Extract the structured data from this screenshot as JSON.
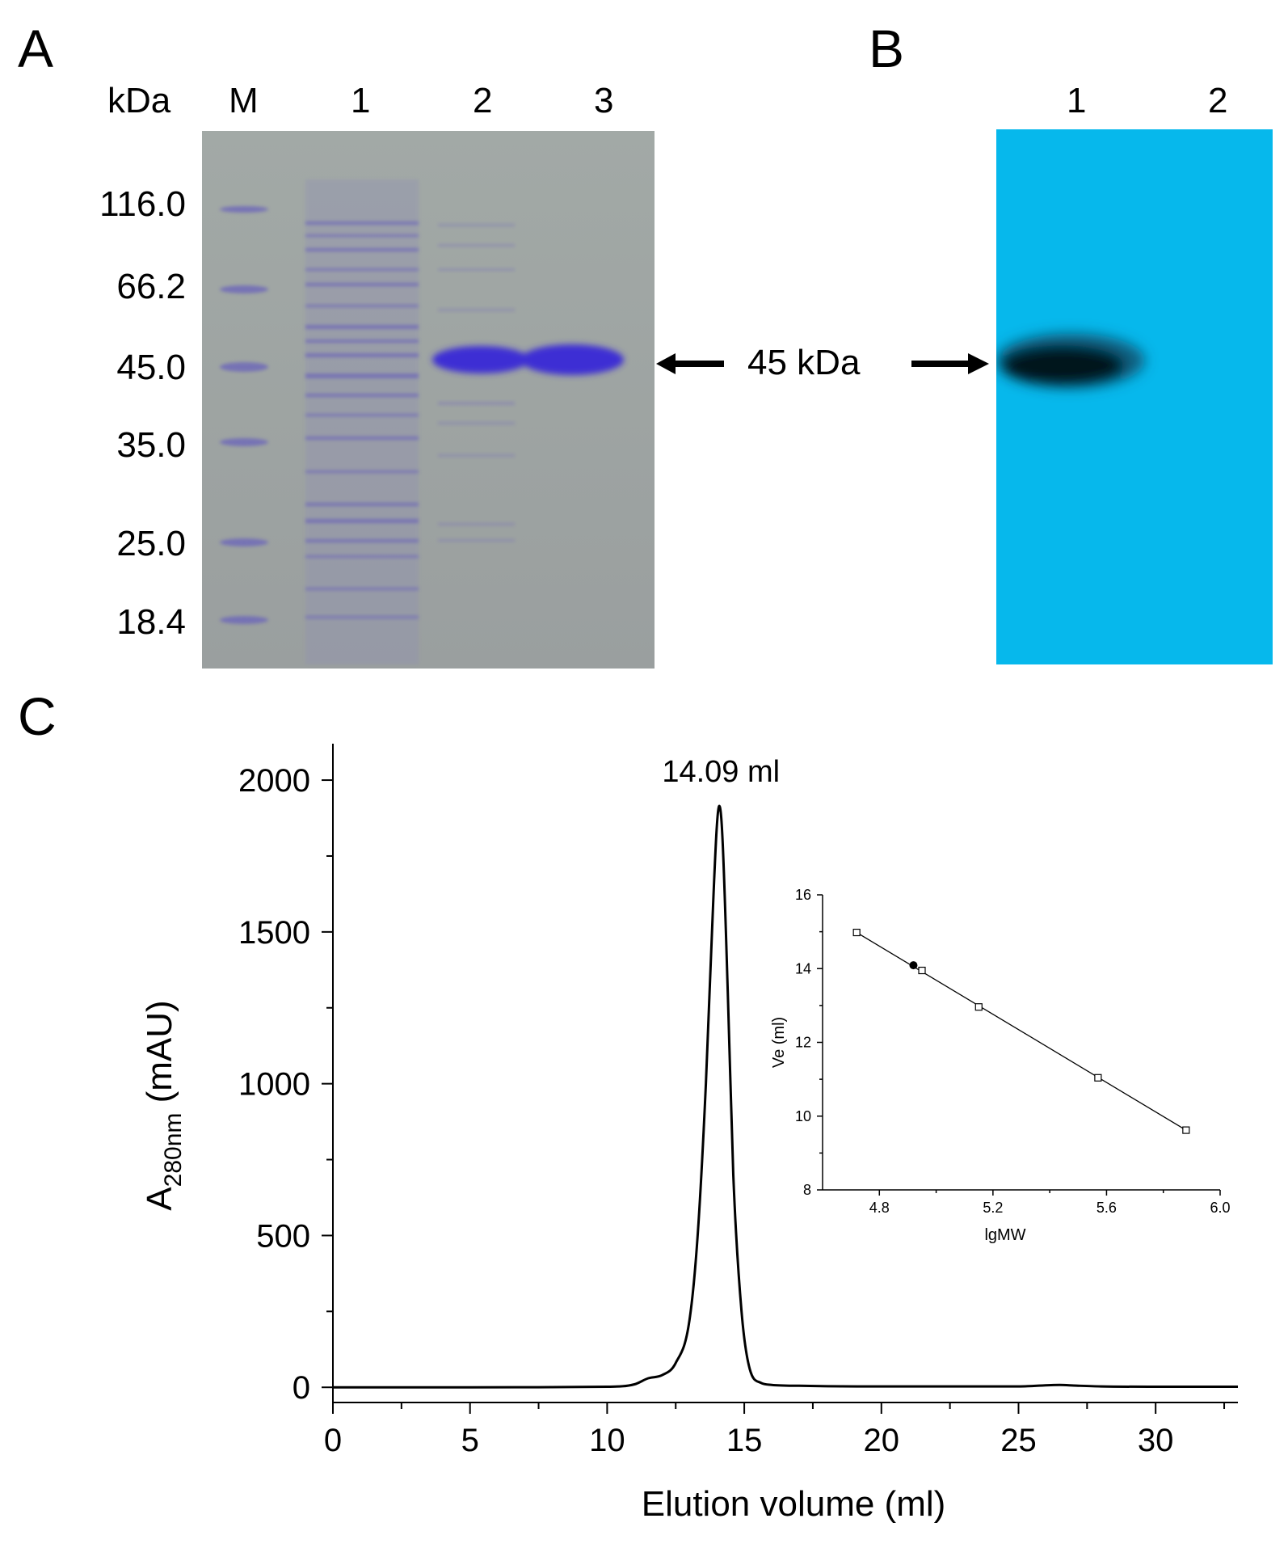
{
  "panel_a": {
    "letter": "A",
    "unit_label": "kDa",
    "lanes": [
      "M",
      "1",
      "2",
      "3"
    ],
    "marker_weights": [
      "116.0",
      "66.2",
      "45.0",
      "35.0",
      "25.0",
      "18.4"
    ],
    "band_label": "45 kDa",
    "colors": {
      "gel_background": "#9fa6a3",
      "stain": "#4a3ad6"
    }
  },
  "panel_b": {
    "letter": "B",
    "lanes": [
      "1",
      "2"
    ],
    "colors": {
      "membrane": "#06b8ec",
      "band": "#05141c"
    }
  },
  "chart_data": [
    {
      "panel": "C",
      "type": "line",
      "xlabel": "Elution volume (ml)",
      "ylabel_main": "A",
      "ylabel_sub": "280nm",
      "ylabel_unit": "(mAU)",
      "xlim": [
        0,
        33
      ],
      "ylim": [
        -50,
        2120
      ],
      "xticks": [
        0,
        5,
        10,
        15,
        20,
        25,
        30
      ],
      "yticks": [
        0,
        500,
        1000,
        1500,
        2000
      ],
      "annotation": {
        "text": "14.09 ml",
        "x": 14.09,
        "y": 1915
      },
      "x": [
        0,
        5,
        10,
        11,
        11.5,
        12,
        12.5,
        13,
        13.3,
        13.6,
        13.8,
        14.0,
        14.09,
        14.2,
        14.4,
        14.6,
        14.9,
        15.2,
        15.6,
        16,
        17,
        20,
        25,
        26.5,
        27,
        28,
        30,
        33
      ],
      "y": [
        0,
        0,
        2,
        10,
        30,
        40,
        80,
        220,
        500,
        1000,
        1450,
        1850,
        1915,
        1820,
        1300,
        700,
        250,
        60,
        15,
        8,
        5,
        3,
        3,
        8,
        6,
        3,
        2,
        2
      ]
    },
    {
      "type": "scatter",
      "inset": true,
      "xlabel": "lgMW",
      "ylabel": "Ve (ml)",
      "xlim": [
        4.6,
        6.0
      ],
      "ylim": [
        8,
        16
      ],
      "xticks": [
        "4.8",
        "5.2",
        "5.6",
        "6.0"
      ],
      "yticks": [
        "8",
        "10",
        "12",
        "14",
        "16"
      ],
      "standards": [
        {
          "x": 4.72,
          "y": 14.98
        },
        {
          "x": 4.95,
          "y": 13.95
        },
        {
          "x": 5.15,
          "y": 12.96
        },
        {
          "x": 5.57,
          "y": 11.04
        },
        {
          "x": 5.88,
          "y": 9.62
        }
      ],
      "sample": {
        "x": 4.92,
        "y": 14.09
      },
      "fit_line": {
        "x": [
          4.72,
          5.88
        ],
        "y": [
          14.98,
          9.62
        ]
      }
    }
  ]
}
